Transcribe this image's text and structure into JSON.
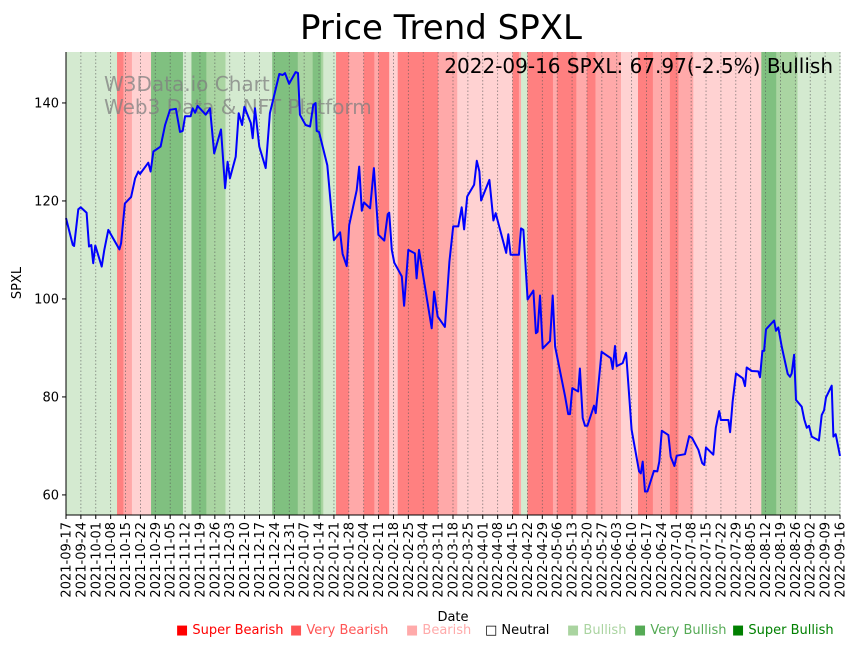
{
  "chart_data": {
    "type": "line",
    "title": "Price Trend SPXL",
    "annotation": "2022-09-16 SPXL: 67.97(-2.5%) Bullish",
    "watermark": [
      "W3Data.io Chart",
      "Web3 Data & NFT Platform"
    ],
    "xlabel": "Date",
    "ylabel": "SPXL",
    "x_unit": "days since 2021-09-17",
    "xlim": [
      0,
      364
    ],
    "ylim": [
      55.9,
      150.4
    ],
    "yticks": [
      60,
      80,
      100,
      120,
      140
    ],
    "xtick_labels": [
      "2021-09-17",
      "2021-09-24",
      "2021-10-01",
      "2021-10-08",
      "2021-10-15",
      "2021-10-22",
      "2021-10-29",
      "2021-11-05",
      "2021-11-12",
      "2021-11-19",
      "2021-11-26",
      "2021-12-03",
      "2021-12-10",
      "2021-12-17",
      "2021-12-24",
      "2021-12-31",
      "2022-01-07",
      "2022-01-14",
      "2022-01-21",
      "2022-01-28",
      "2022-02-04",
      "2022-02-11",
      "2022-02-18",
      "2022-02-25",
      "2022-03-04",
      "2022-03-11",
      "2022-03-18",
      "2022-03-25",
      "2022-04-01",
      "2022-04-08",
      "2022-04-15",
      "2022-04-22",
      "2022-04-29",
      "2022-05-06",
      "2022-05-13",
      "2022-05-20",
      "2022-05-27",
      "2022-06-03",
      "2022-06-10",
      "2022-06-17",
      "2022-06-24",
      "2022-07-01",
      "2022-07-08",
      "2022-07-15",
      "2022-07-22",
      "2022-07-29",
      "2022-08-05",
      "2022-08-12",
      "2022-08-19",
      "2022-08-26",
      "2022-09-02",
      "2022-09-09",
      "2022-09-16"
    ],
    "grid": "vertical dotted",
    "line_color": "#0000ff",
    "series": [
      [
        0,
        116.5
      ],
      [
        3.2,
        111.0
      ],
      [
        3.8,
        110.8
      ],
      [
        5.8,
        118.3
      ],
      [
        6.9,
        118.7
      ],
      [
        9.7,
        117.6
      ],
      [
        10.8,
        110.7
      ],
      [
        11.9,
        111.0
      ],
      [
        12.8,
        107.3
      ],
      [
        13.8,
        110.9
      ],
      [
        16.8,
        106.6
      ],
      [
        18.0,
        110.0
      ],
      [
        19.9,
        114.1
      ],
      [
        25.1,
        110.1
      ],
      [
        25.9,
        111.4
      ],
      [
        27.7,
        119.5
      ],
      [
        30.6,
        120.8
      ],
      [
        32.5,
        124.6
      ],
      [
        34.0,
        126.0
      ],
      [
        34.8,
        125.5
      ],
      [
        38.7,
        127.8
      ],
      [
        39.8,
        126.0
      ],
      [
        41.1,
        130.1
      ],
      [
        44.5,
        131.1
      ],
      [
        46.6,
        135.5
      ],
      [
        48.9,
        138.6
      ],
      [
        51.7,
        138.8
      ],
      [
        53.6,
        134.1
      ],
      [
        54.9,
        134.3
      ],
      [
        56.0,
        137.3
      ],
      [
        58.6,
        137.3
      ],
      [
        59.6,
        138.9
      ],
      [
        60.7,
        138.0
      ],
      [
        61.9,
        139.4
      ],
      [
        65.7,
        137.6
      ],
      [
        67.7,
        138.9
      ],
      [
        69.7,
        129.7
      ],
      [
        72.9,
        134.6
      ],
      [
        74.8,
        122.6
      ],
      [
        76.0,
        128.0
      ],
      [
        77.1,
        124.6
      ],
      [
        79.8,
        129.0
      ],
      [
        81.2,
        137.9
      ],
      [
        82.8,
        135.5
      ],
      [
        83.9,
        139.2
      ],
      [
        86.9,
        135.9
      ],
      [
        87.8,
        132.8
      ],
      [
        88.9,
        138.9
      ],
      [
        90.9,
        131.1
      ],
      [
        93.9,
        126.7
      ],
      [
        95.9,
        137.9
      ],
      [
        100.3,
        145.9
      ],
      [
        101.9,
        145.7
      ],
      [
        103.0,
        146.1
      ],
      [
        104.9,
        143.9
      ],
      [
        108.0,
        146.3
      ],
      [
        109.1,
        146.1
      ],
      [
        110.0,
        137.6
      ],
      [
        112.7,
        135.5
      ],
      [
        114.8,
        135.2
      ],
      [
        116.3,
        139.6
      ],
      [
        117.4,
        140.0
      ],
      [
        117.9,
        134.3
      ],
      [
        119.0,
        134.1
      ],
      [
        122.9,
        127.3
      ],
      [
        124.5,
        119.5
      ],
      [
        126.0,
        112.0
      ],
      [
        128.9,
        113.6
      ],
      [
        130.1,
        109.2
      ],
      [
        132.0,
        106.7
      ],
      [
        133.2,
        115.1
      ],
      [
        136.7,
        122.2
      ],
      [
        137.9,
        127.0
      ],
      [
        139.1,
        118.0
      ],
      [
        140.1,
        119.7
      ],
      [
        143.0,
        118.5
      ],
      [
        144.8,
        126.7
      ],
      [
        146.9,
        113.1
      ],
      [
        149.7,
        111.9
      ],
      [
        151.3,
        117.3
      ],
      [
        152.0,
        117.6
      ],
      [
        153.2,
        110.0
      ],
      [
        154.4,
        107.4
      ],
      [
        157.9,
        104.6
      ],
      [
        159.0,
        98.6
      ],
      [
        161.0,
        110.0
      ],
      [
        164.1,
        109.3
      ],
      [
        164.9,
        104.2
      ],
      [
        166.0,
        110.0
      ],
      [
        172.0,
        94.0
      ],
      [
        173.1,
        101.5
      ],
      [
        174.8,
        96.4
      ],
      [
        178.2,
        94.3
      ],
      [
        180.3,
        107.6
      ],
      [
        182.1,
        114.8
      ],
      [
        184.5,
        114.8
      ],
      [
        186.1,
        118.7
      ],
      [
        187.2,
        114.2
      ],
      [
        188.7,
        120.9
      ],
      [
        191.9,
        123.3
      ],
      [
        193.2,
        128.2
      ],
      [
        194.4,
        126.0
      ],
      [
        195.2,
        120.1
      ],
      [
        199.1,
        124.3
      ],
      [
        201.0,
        116.0
      ],
      [
        202.1,
        117.5
      ],
      [
        207.0,
        109.4
      ],
      [
        208.0,
        113.2
      ],
      [
        209.1,
        109.0
      ],
      [
        213.0,
        109.0
      ],
      [
        214.0,
        114.4
      ],
      [
        215.1,
        114.1
      ],
      [
        217.1,
        99.9
      ],
      [
        219.8,
        101.7
      ],
      [
        221.0,
        93.0
      ],
      [
        221.8,
        93.3
      ],
      [
        222.9,
        100.7
      ],
      [
        224.2,
        89.9
      ],
      [
        227.6,
        91.4
      ],
      [
        228.9,
        100.7
      ],
      [
        230.0,
        90.3
      ],
      [
        234.7,
        80.1
      ],
      [
        236.2,
        76.5
      ],
      [
        237.0,
        76.5
      ],
      [
        238.1,
        81.8
      ],
      [
        240.9,
        81.1
      ],
      [
        241.7,
        85.8
      ],
      [
        243.0,
        75.7
      ],
      [
        244.1,
        74.1
      ],
      [
        245.2,
        74.1
      ],
      [
        248.3,
        78.2
      ],
      [
        249.1,
        76.7
      ],
      [
        251.9,
        89.2
      ],
      [
        256.2,
        87.9
      ],
      [
        257.1,
        85.7
      ],
      [
        258.2,
        90.4
      ],
      [
        259.0,
        86.3
      ],
      [
        261.8,
        86.9
      ],
      [
        263.4,
        89.0
      ],
      [
        266.0,
        73.3
      ],
      [
        269.5,
        64.8
      ],
      [
        270.3,
        64.4
      ],
      [
        271.2,
        66.8
      ],
      [
        272.3,
        60.7
      ],
      [
        273.4,
        60.7
      ],
      [
        276.5,
        64.9
      ],
      [
        278.1,
        64.8
      ],
      [
        279.0,
        66.8
      ],
      [
        280.2,
        73.1
      ],
      [
        283.3,
        72.2
      ],
      [
        284.4,
        67.8
      ],
      [
        286.1,
        65.9
      ],
      [
        287.2,
        68.0
      ],
      [
        291.1,
        68.3
      ],
      [
        293.1,
        72.0
      ],
      [
        294.5,
        71.6
      ],
      [
        297.4,
        69.2
      ],
      [
        299.2,
        66.5
      ],
      [
        300.2,
        66.1
      ],
      [
        301.0,
        69.7
      ],
      [
        304.4,
        68.2
      ],
      [
        305.6,
        73.7
      ],
      [
        307.2,
        77.1
      ],
      [
        308.0,
        75.3
      ],
      [
        311.5,
        75.3
      ],
      [
        312.3,
        72.8
      ],
      [
        313.5,
        79.0
      ],
      [
        315.1,
        84.8
      ],
      [
        318.3,
        83.8
      ],
      [
        319.3,
        82.2
      ],
      [
        320.1,
        86.0
      ],
      [
        322.5,
        85.3
      ],
      [
        325.6,
        85.2
      ],
      [
        326.4,
        84.0
      ],
      [
        327.5,
        89.4
      ],
      [
        328.3,
        89.4
      ],
      [
        329.2,
        93.8
      ],
      [
        333.0,
        95.6
      ],
      [
        333.9,
        93.5
      ],
      [
        335.0,
        94.2
      ],
      [
        336.6,
        90.3
      ],
      [
        339.4,
        84.7
      ],
      [
        340.5,
        84.1
      ],
      [
        341.3,
        84.8
      ],
      [
        342.4,
        88.6
      ],
      [
        343.3,
        79.4
      ],
      [
        346.0,
        78.0
      ],
      [
        347.2,
        75.4
      ],
      [
        348.4,
        73.7
      ],
      [
        349.4,
        74.1
      ],
      [
        350.7,
        71.9
      ],
      [
        354.1,
        71.1
      ],
      [
        355.4,
        76.3
      ],
      [
        356.5,
        77.3
      ],
      [
        357.4,
        79.9
      ],
      [
        360.1,
        82.3
      ],
      [
        360.9,
        71.9
      ],
      [
        362.0,
        72.4
      ],
      [
        364,
        67.97
      ]
    ],
    "sentiment_bands": [
      [
        0,
        24,
        1
      ],
      [
        24,
        27,
        -3
      ],
      [
        27,
        31,
        -2
      ],
      [
        31,
        40,
        -1
      ],
      [
        40,
        55,
        3
      ],
      [
        55,
        59,
        1
      ],
      [
        59,
        66,
        3
      ],
      [
        66,
        75,
        2
      ],
      [
        75,
        97,
        1
      ],
      [
        97,
        109,
        3
      ],
      [
        109,
        116,
        2
      ],
      [
        116,
        120,
        3
      ],
      [
        120,
        121,
        2
      ],
      [
        121,
        127,
        1
      ],
      [
        127,
        133,
        -3
      ],
      [
        133,
        140,
        -2
      ],
      [
        140,
        145,
        -3
      ],
      [
        145,
        147,
        -2
      ],
      [
        147,
        152,
        -3
      ],
      [
        152,
        156,
        -1
      ],
      [
        156,
        175,
        -3
      ],
      [
        175,
        184,
        -2
      ],
      [
        184,
        210,
        -1
      ],
      [
        210,
        213,
        -3
      ],
      [
        213,
        214,
        -2
      ],
      [
        214,
        217,
        1
      ],
      [
        217,
        229,
        -3
      ],
      [
        229,
        231,
        -2
      ],
      [
        231,
        240,
        -3
      ],
      [
        240,
        245,
        -2
      ],
      [
        245,
        249,
        -3
      ],
      [
        249,
        261,
        -2
      ],
      [
        261,
        269,
        -1
      ],
      [
        269,
        276,
        -3
      ],
      [
        276,
        284,
        -2
      ],
      [
        284,
        288,
        -3
      ],
      [
        288,
        295,
        -2
      ],
      [
        295,
        327,
        -1
      ],
      [
        327,
        334,
        3
      ],
      [
        334,
        344,
        2
      ],
      [
        344,
        364,
        1
      ]
    ],
    "band_colors": {
      "-3": "#ff8080",
      "-2": "#ffa9a9",
      "-1": "#ffd2d2",
      "0": "#ffffff",
      "1": "#d4ead0",
      "2": "#aad5a2",
      "3": "#80c080"
    },
    "legend": [
      {
        "label": "Super Bearish",
        "color": "#ff0000",
        "symbol": "■"
      },
      {
        "label": "Very Bearish",
        "color": "#ff5555",
        "symbol": "■"
      },
      {
        "label": "Bearish",
        "color": "#ffaaaa",
        "symbol": "■"
      },
      {
        "label": "Neutral",
        "color": "#000000",
        "symbol": "□"
      },
      {
        "label": "Bullish",
        "color": "#aad4a0",
        "symbol": "■"
      },
      {
        "label": "Very Bullish",
        "color": "#55aa55",
        "symbol": "■"
      },
      {
        "label": "Super Bullish",
        "color": "#008000",
        "symbol": "■"
      }
    ],
    "legend_placement": "bottom-right"
  }
}
